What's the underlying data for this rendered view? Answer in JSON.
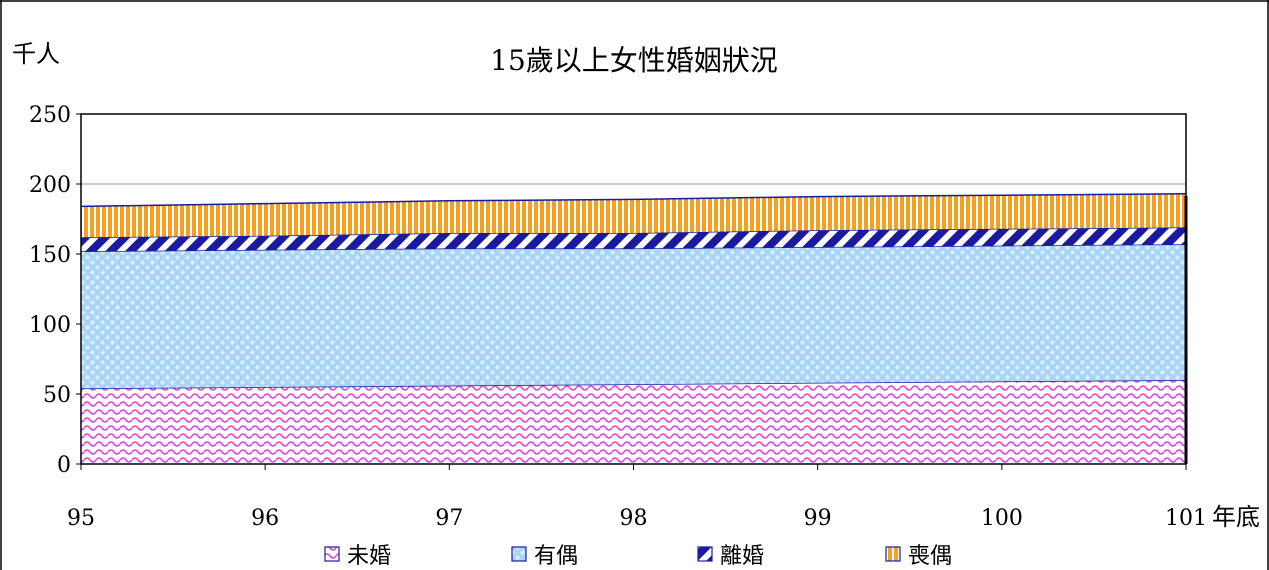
{
  "chart_data": {
    "type": "area",
    "stacked": true,
    "title": "15歲以上女性婚姻狀況",
    "ylabel": "千人",
    "xlabel": "年底",
    "x": [
      "95",
      "96",
      "97",
      "98",
      "99",
      "100",
      "101"
    ],
    "ylim": [
      0,
      250
    ],
    "yticks": [
      "0",
      "50",
      "100",
      "150",
      "200",
      "250"
    ],
    "grid": "horizontal",
    "legend_position": "bottom",
    "series": [
      {
        "name": "未婚",
        "values": [
          54,
          55,
          56,
          57,
          58,
          59,
          60
        ],
        "color": "#e040e0",
        "pattern": "wave"
      },
      {
        "name": "有偶",
        "values": [
          98,
          98,
          98,
          97,
          97,
          97,
          97
        ],
        "color": "#a8d4f5",
        "pattern": "dots"
      },
      {
        "name": "離婚",
        "values": [
          10,
          10,
          11,
          11,
          12,
          12,
          12
        ],
        "color": "#1a1aa0",
        "pattern": "diagonal"
      },
      {
        "name": "喪偶",
        "values": [
          22,
          23,
          23,
          24,
          24,
          24,
          24
        ],
        "color": "#f5a020",
        "pattern": "vertical"
      }
    ]
  }
}
